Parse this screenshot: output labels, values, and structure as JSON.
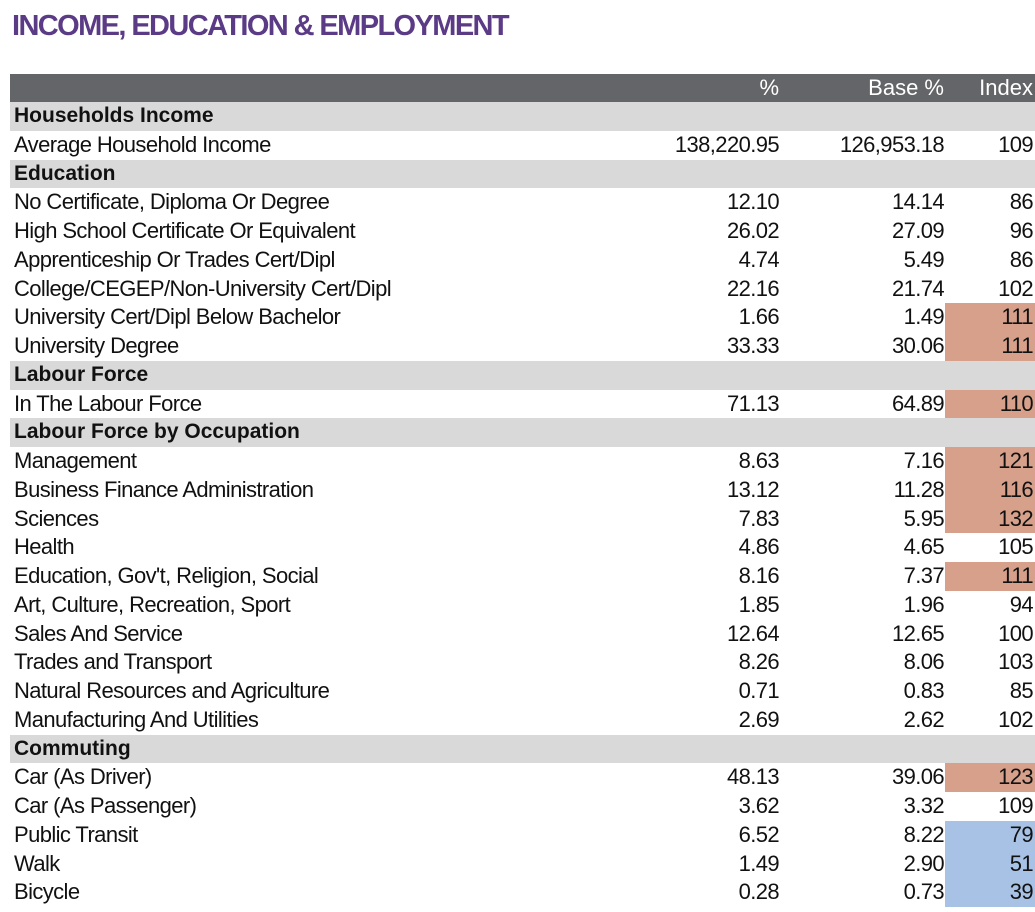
{
  "title": "INCOME, EDUCATION & EMPLOYMENT",
  "columns": [
    "%",
    "Base %",
    "Index"
  ],
  "colors": {
    "header_bg": "#646568",
    "section_bg": "#d9d9d9",
    "high_index": "#d6a08a",
    "low_index": "#a8c2e5",
    "title": "#5b3a86"
  },
  "rows": [
    {
      "type": "section",
      "label": "Households Income"
    },
    {
      "type": "data",
      "label": "Average Household Income",
      "pct": "138,220.95",
      "base": "126,953.18",
      "index": "109",
      "flag": ""
    },
    {
      "type": "section",
      "label": "Education"
    },
    {
      "type": "data",
      "label": "No Certificate, Diploma Or Degree",
      "pct": "12.10",
      "base": "14.14",
      "index": "86",
      "flag": ""
    },
    {
      "type": "data",
      "label": "High School Certificate Or Equivalent",
      "pct": "26.02",
      "base": "27.09",
      "index": "96",
      "flag": ""
    },
    {
      "type": "data",
      "label": "Apprenticeship Or Trades Cert/Dipl",
      "pct": "4.74",
      "base": "5.49",
      "index": "86",
      "flag": ""
    },
    {
      "type": "data",
      "label": "College/CEGEP/Non-University Cert/Dipl",
      "pct": "22.16",
      "base": "21.74",
      "index": "102",
      "flag": ""
    },
    {
      "type": "data",
      "label": "University Cert/Dipl Below Bachelor",
      "pct": "1.66",
      "base": "1.49",
      "index": "111",
      "flag": "high"
    },
    {
      "type": "data",
      "label": "University Degree",
      "pct": "33.33",
      "base": "30.06",
      "index": "111",
      "flag": "high"
    },
    {
      "type": "section",
      "label": "Labour Force"
    },
    {
      "type": "data",
      "label": "In The Labour Force",
      "pct": "71.13",
      "base": "64.89",
      "index": "110",
      "flag": "high"
    },
    {
      "type": "section",
      "label": "Labour Force by Occupation"
    },
    {
      "type": "data",
      "label": "Management",
      "pct": "8.63",
      "base": "7.16",
      "index": "121",
      "flag": "high"
    },
    {
      "type": "data",
      "label": "Business Finance Administration",
      "pct": "13.12",
      "base": "11.28",
      "index": "116",
      "flag": "high"
    },
    {
      "type": "data",
      "label": "Sciences",
      "pct": "7.83",
      "base": "5.95",
      "index": "132",
      "flag": "high"
    },
    {
      "type": "data",
      "label": "Health",
      "pct": "4.86",
      "base": "4.65",
      "index": "105",
      "flag": ""
    },
    {
      "type": "data",
      "label": "Education, Gov't, Religion, Social",
      "pct": "8.16",
      "base": "7.37",
      "index": "111",
      "flag": "high"
    },
    {
      "type": "data",
      "label": "Art, Culture, Recreation, Sport",
      "pct": "1.85",
      "base": "1.96",
      "index": "94",
      "flag": ""
    },
    {
      "type": "data",
      "label": "Sales And Service",
      "pct": "12.64",
      "base": "12.65",
      "index": "100",
      "flag": ""
    },
    {
      "type": "data",
      "label": "Trades and Transport",
      "pct": "8.26",
      "base": "8.06",
      "index": "103",
      "flag": ""
    },
    {
      "type": "data",
      "label": "Natural Resources and Agriculture",
      "pct": "0.71",
      "base": "0.83",
      "index": "85",
      "flag": ""
    },
    {
      "type": "data",
      "label": "Manufacturing And Utilities",
      "pct": "2.69",
      "base": "2.62",
      "index": "102",
      "flag": ""
    },
    {
      "type": "section",
      "label": "Commuting"
    },
    {
      "type": "data",
      "label": "Car (As Driver)",
      "pct": "48.13",
      "base": "39.06",
      "index": "123",
      "flag": "high"
    },
    {
      "type": "data",
      "label": "Car (As Passenger)",
      "pct": "3.62",
      "base": "3.32",
      "index": "109",
      "flag": ""
    },
    {
      "type": "data",
      "label": "Public Transit",
      "pct": "6.52",
      "base": "8.22",
      "index": "79",
      "flag": "low"
    },
    {
      "type": "data",
      "label": "Walk",
      "pct": "1.49",
      "base": "2.90",
      "index": "51",
      "flag": "low"
    },
    {
      "type": "data",
      "label": "Bicycle",
      "pct": "0.28",
      "base": "0.73",
      "index": "39",
      "flag": "low"
    }
  ]
}
